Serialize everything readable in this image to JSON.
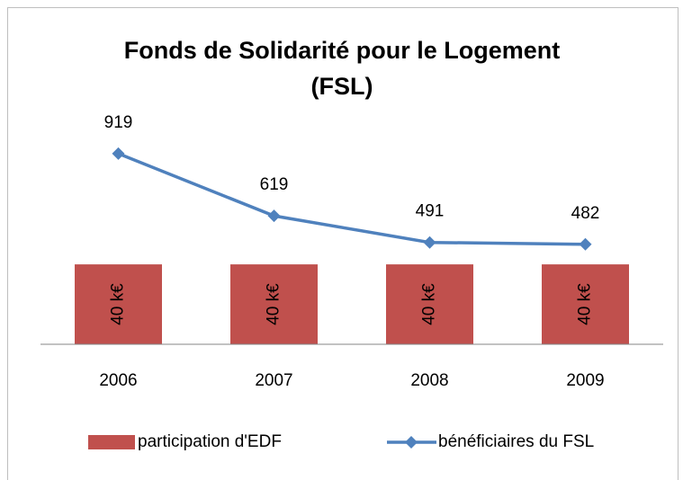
{
  "chart_data": {
    "type": "bar+line",
    "title": "Fonds de Solidarité pour le Logement (FSL)",
    "categories": [
      "2006",
      "2007",
      "2008",
      "2009"
    ],
    "series": [
      {
        "name": "participation d'EDF",
        "type": "bar",
        "color": "#c0504d",
        "values": [
          40,
          40,
          40,
          40
        ],
        "value_labels": [
          "40 k€",
          "40 k€",
          "40 k€",
          "40 k€"
        ]
      },
      {
        "name": "bénéficiaires du FSL",
        "type": "line",
        "axis": "y2",
        "color": "#4f81bd",
        "values": [
          919,
          619,
          491,
          482
        ]
      }
    ],
    "ylim": [
      0,
      135
    ],
    "y2lim": [
      0,
      1300
    ],
    "legend": "bottom"
  }
}
